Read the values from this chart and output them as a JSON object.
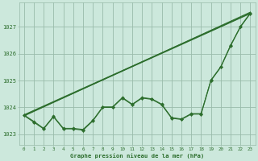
{
  "background_color": "#cce8dc",
  "grid_color": "#99bbaa",
  "line_color": "#2d6e2d",
  "marker_color": "#2d6e2d",
  "text_color": "#2d6e2d",
  "xlabel": "Graphe pression niveau de la mer (hPa)",
  "ylim": [
    1022.6,
    1027.9
  ],
  "xlim": [
    -0.5,
    23.5
  ],
  "yticks": [
    1023,
    1024,
    1025,
    1026,
    1027
  ],
  "xticks": [
    0,
    1,
    2,
    3,
    4,
    5,
    6,
    7,
    8,
    9,
    10,
    11,
    12,
    13,
    14,
    15,
    16,
    17,
    18,
    19,
    20,
    21,
    22,
    23
  ],
  "line_wavy1": [
    1023.7,
    1023.45,
    1023.2,
    1023.65,
    1023.2,
    1023.2,
    1023.15,
    1023.5,
    1024.0,
    1024.0,
    1024.35,
    1024.1,
    1024.35,
    1024.3,
    1024.1,
    1023.6,
    1023.55,
    1023.75,
    1023.75,
    1025.0,
    1025.5,
    1026.3,
    1027.0,
    1027.5
  ],
  "line_wavy2": [
    1023.72,
    1023.48,
    1023.22,
    1023.67,
    1023.22,
    1023.22,
    1023.18,
    1023.52,
    1024.02,
    1024.02,
    1024.37,
    1024.12,
    1024.37,
    1024.32,
    1024.12,
    1023.62,
    1023.57,
    1023.77,
    1023.77,
    1025.02,
    1025.52,
    1026.32,
    1027.02,
    1027.52
  ],
  "line_straight1": {
    "x": [
      0,
      23
    ],
    "y": [
      1023.7,
      1027.5
    ]
  },
  "line_straight2": {
    "x": [
      0,
      23
    ],
    "y": [
      1023.72,
      1027.52
    ]
  },
  "line_straight3": {
    "x": [
      0,
      23
    ],
    "y": [
      1023.68,
      1027.55
    ]
  }
}
